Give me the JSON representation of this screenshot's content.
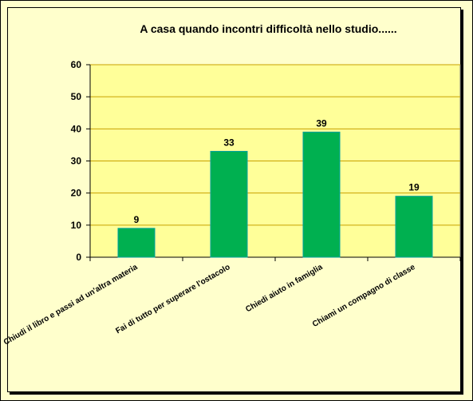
{
  "chart_data": {
    "type": "bar",
    "title": "A casa quando incontri difficoltà nello studio......",
    "xlabel": "",
    "ylabel": "",
    "categories": [
      "Chiudi il libro e passi ad un'altra materia",
      "Fai di tutto per superare l'ostacolo",
      "Chiedi aiuto in famiglia",
      "Chiami un compagno di classe"
    ],
    "values": [
      9,
      33,
      39,
      19
    ],
    "data_labels": [
      "9",
      "33",
      "39",
      "19"
    ],
    "ylim": [
      0,
      60
    ],
    "yticks": [
      0,
      10,
      20,
      30,
      40,
      50,
      60
    ],
    "ytick_labels": [
      "0",
      "10",
      "20",
      "30",
      "40",
      "50",
      "60"
    ],
    "grid": true,
    "legend": "none",
    "colors": {
      "bar": "#00b050",
      "bar_edge": "#00a0a0",
      "plot_background": "#ffff99",
      "grid": "#c8a000",
      "chart_background": "#ffffcc"
    }
  }
}
